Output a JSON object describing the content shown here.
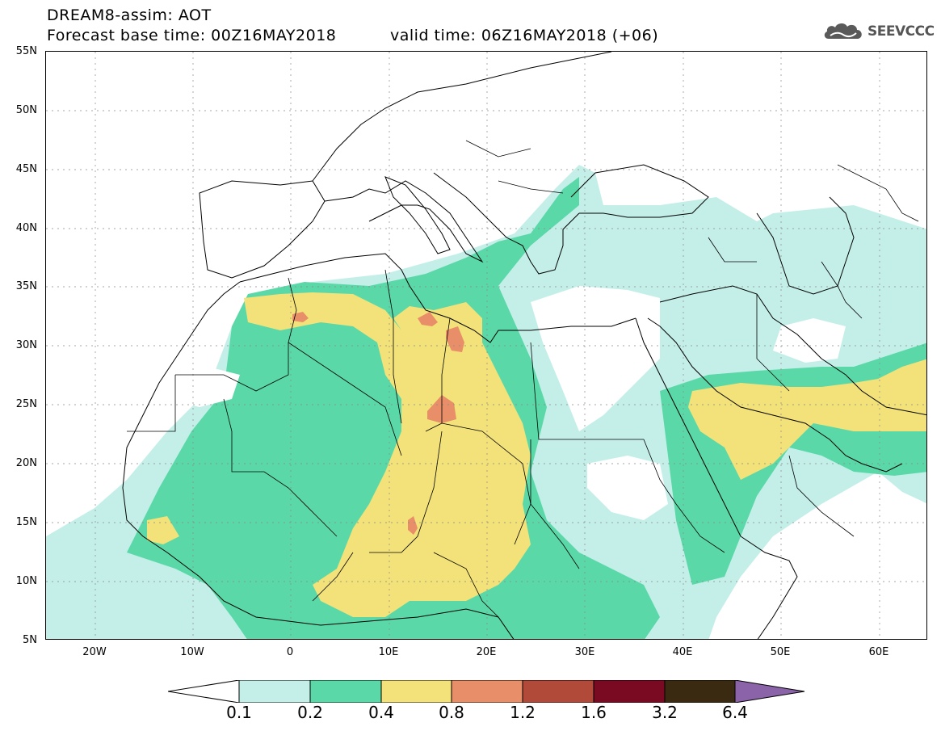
{
  "header": {
    "title_line1": "DREAM8-assim: AOT",
    "title_line2": "Forecast base time: 00Z16MAY2018",
    "valid_time": "valid time: 06Z16MAY2018 (+06)",
    "logo_text": "SEEVCCC",
    "logo_icon": "cloud-icon"
  },
  "map": {
    "lat_labels": [
      "55N",
      "50N",
      "45N",
      "40N",
      "35N",
      "30N",
      "25N",
      "20N",
      "15N",
      "10N",
      "5N"
    ],
    "lon_labels": [
      "20W",
      "10W",
      "0",
      "10E",
      "20E",
      "30E",
      "40E",
      "50E",
      "60E"
    ],
    "lat_range": [
      5,
      55
    ],
    "lon_range": [
      -25,
      65
    ]
  },
  "colorbar": {
    "labels": [
      "0.1",
      "0.2",
      "0.4",
      "0.8",
      "1.2",
      "1.6",
      "3.2",
      "6.4"
    ],
    "colors": [
      "#ffffff",
      "#c4efe9",
      "#5ad8a8",
      "#f3e279",
      "#e88e68",
      "#b24a3a",
      "#7a0a22",
      "#3b2a12",
      "#8a63a8"
    ]
  }
}
